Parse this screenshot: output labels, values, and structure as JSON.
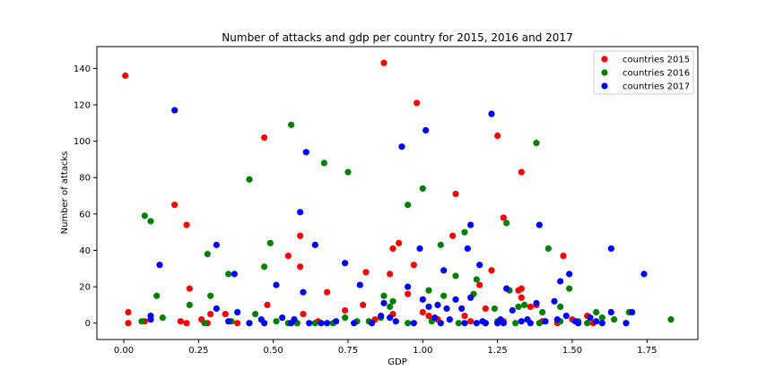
{
  "chart_data": {
    "type": "scatter",
    "title": "Number of attacks and gdp per country for 2015, 2016 and 2017",
    "xlabel": "GDP",
    "ylabel": "Number of attacks",
    "xlim": [
      -0.09,
      1.92
    ],
    "ylim": [
      -9,
      152
    ],
    "xticks": [
      0.0,
      0.25,
      0.5,
      0.75,
      1.0,
      1.25,
      1.5,
      1.75
    ],
    "xtick_labels": [
      "0.00",
      "0.25",
      "0.50",
      "0.75",
      "1.00",
      "1.25",
      "1.50",
      "1.75"
    ],
    "yticks": [
      0,
      20,
      40,
      60,
      80,
      100,
      120,
      140
    ],
    "ytick_labels": [
      "0",
      "20",
      "40",
      "60",
      "80",
      "100",
      "120",
      "140"
    ],
    "grid": false,
    "legend_position": "top-right",
    "series": [
      {
        "name": "countries 2015",
        "color": "#ff0000",
        "points": [
          [
            0.005,
            136
          ],
          [
            0.015,
            6
          ],
          [
            0.015,
            0
          ],
          [
            0.17,
            65
          ],
          [
            0.21,
            54
          ],
          [
            0.22,
            19
          ],
          [
            0.19,
            1
          ],
          [
            0.21,
            0
          ],
          [
            0.26,
            2
          ],
          [
            0.29,
            5
          ],
          [
            0.28,
            0
          ],
          [
            0.34,
            5
          ],
          [
            0.47,
            102
          ],
          [
            0.48,
            10
          ],
          [
            0.55,
            37
          ],
          [
            0.59,
            48
          ],
          [
            0.59,
            31
          ],
          [
            0.6,
            5
          ],
          [
            0.68,
            17
          ],
          [
            0.74,
            7
          ],
          [
            0.8,
            10
          ],
          [
            0.81,
            28
          ],
          [
            0.87,
            143
          ],
          [
            0.89,
            27
          ],
          [
            0.9,
            41
          ],
          [
            0.92,
            44
          ],
          [
            0.95,
            16
          ],
          [
            0.97,
            32
          ],
          [
            0.98,
            121
          ],
          [
            1.0,
            6
          ],
          [
            1.02,
            4
          ],
          [
            1.11,
            71
          ],
          [
            1.1,
            48
          ],
          [
            1.14,
            4
          ],
          [
            1.19,
            21
          ],
          [
            1.21,
            8
          ],
          [
            1.23,
            29
          ],
          [
            1.25,
            103
          ],
          [
            1.27,
            58
          ],
          [
            1.33,
            83
          ],
          [
            1.33,
            19
          ],
          [
            1.33,
            14
          ],
          [
            1.32,
            18
          ],
          [
            1.36,
            9
          ],
          [
            1.38,
            10
          ],
          [
            1.4,
            1
          ],
          [
            1.47,
            37
          ],
          [
            1.5,
            2
          ],
          [
            1.55,
            4
          ],
          [
            1.57,
            0
          ],
          [
            0.38,
            0
          ],
          [
            0.65,
            1
          ],
          [
            0.84,
            2
          ],
          [
            0.9,
            5
          ],
          [
            1.05,
            2
          ],
          [
            1.16,
            1
          ],
          [
            1.27,
            1
          ],
          [
            1.45,
            0
          ],
          [
            0.07,
            1
          ]
        ]
      },
      {
        "name": "countries 2016",
        "color": "#008000",
        "points": [
          [
            0.06,
            1
          ],
          [
            0.07,
            59
          ],
          [
            0.09,
            56
          ],
          [
            0.11,
            15
          ],
          [
            0.13,
            3
          ],
          [
            0.22,
            10
          ],
          [
            0.28,
            38
          ],
          [
            0.29,
            15
          ],
          [
            0.35,
            27
          ],
          [
            0.42,
            79
          ],
          [
            0.44,
            5
          ],
          [
            0.47,
            31
          ],
          [
            0.49,
            44
          ],
          [
            0.55,
            0
          ],
          [
            0.56,
            109
          ],
          [
            0.67,
            88
          ],
          [
            0.75,
            83
          ],
          [
            0.74,
            3
          ],
          [
            0.86,
            3
          ],
          [
            0.87,
            15
          ],
          [
            0.89,
            9
          ],
          [
            0.9,
            12
          ],
          [
            0.95,
            65
          ],
          [
            1.0,
            74
          ],
          [
            1.02,
            18
          ],
          [
            1.06,
            43
          ],
          [
            1.07,
            15
          ],
          [
            1.11,
            26
          ],
          [
            1.14,
            50
          ],
          [
            1.17,
            16
          ],
          [
            1.18,
            24
          ],
          [
            1.24,
            8
          ],
          [
            1.28,
            55
          ],
          [
            1.29,
            18
          ],
          [
            1.32,
            9
          ],
          [
            1.34,
            10
          ],
          [
            1.38,
            99
          ],
          [
            1.4,
            6
          ],
          [
            1.42,
            41
          ],
          [
            1.46,
            9
          ],
          [
            1.49,
            19
          ],
          [
            1.58,
            6
          ],
          [
            1.6,
            3
          ],
          [
            1.64,
            2
          ],
          [
            1.83,
            2
          ],
          [
            0.27,
            0
          ],
          [
            0.51,
            1
          ],
          [
            0.64,
            0
          ],
          [
            0.78,
            1
          ],
          [
            0.95,
            0
          ],
          [
            1.03,
            1
          ],
          [
            1.21,
            0
          ],
          [
            1.31,
            0
          ],
          [
            1.46,
            1
          ],
          [
            1.52,
            1
          ],
          [
            0.36,
            1
          ],
          [
            0.58,
            0
          ],
          [
            0.7,
            0
          ],
          [
            0.82,
            1
          ],
          [
            1.12,
            0
          ],
          [
            1.25,
            1
          ],
          [
            1.39,
            0
          ],
          [
            1.55,
            0
          ],
          [
            1.69,
            6
          ]
        ]
      },
      {
        "name": "countries 2017",
        "color": "#0000ff",
        "points": [
          [
            0.09,
            4
          ],
          [
            0.09,
            2
          ],
          [
            0.12,
            32
          ],
          [
            0.17,
            117
          ],
          [
            0.31,
            43
          ],
          [
            0.31,
            8
          ],
          [
            0.37,
            27
          ],
          [
            0.38,
            6
          ],
          [
            0.42,
            0
          ],
          [
            0.47,
            0
          ],
          [
            0.51,
            21
          ],
          [
            0.53,
            3
          ],
          [
            0.57,
            2
          ],
          [
            0.59,
            61
          ],
          [
            0.6,
            17
          ],
          [
            0.61,
            94
          ],
          [
            0.64,
            43
          ],
          [
            0.66,
            0
          ],
          [
            0.74,
            33
          ],
          [
            0.79,
            21
          ],
          [
            0.86,
            4
          ],
          [
            0.87,
            11
          ],
          [
            0.89,
            3
          ],
          [
            0.93,
            97
          ],
          [
            0.95,
            20
          ],
          [
            0.99,
            41
          ],
          [
            1.0,
            13
          ],
          [
            1.01,
            106
          ],
          [
            1.02,
            9
          ],
          [
            1.05,
            10
          ],
          [
            1.07,
            29
          ],
          [
            1.08,
            8
          ],
          [
            1.11,
            13
          ],
          [
            1.13,
            8
          ],
          [
            1.15,
            41
          ],
          [
            1.16,
            54
          ],
          [
            1.16,
            14
          ],
          [
            1.19,
            32
          ],
          [
            1.21,
            0
          ],
          [
            1.23,
            115
          ],
          [
            1.25,
            0
          ],
          [
            1.26,
            2
          ],
          [
            1.28,
            19
          ],
          [
            1.3,
            7
          ],
          [
            1.35,
            2
          ],
          [
            1.38,
            11
          ],
          [
            1.39,
            54
          ],
          [
            1.44,
            12
          ],
          [
            1.46,
            23
          ],
          [
            1.48,
            4
          ],
          [
            1.49,
            27
          ],
          [
            1.52,
            0
          ],
          [
            1.56,
            3
          ],
          [
            1.6,
            0
          ],
          [
            1.63,
            41
          ],
          [
            1.7,
            6
          ],
          [
            1.74,
            27
          ],
          [
            1.63,
            6
          ],
          [
            1.68,
            0
          ],
          [
            0.35,
            1
          ],
          [
            0.56,
            0
          ],
          [
            0.62,
            0
          ],
          [
            0.71,
            1
          ],
          [
            0.77,
            0
          ],
          [
            0.83,
            0
          ],
          [
            0.91,
            1
          ],
          [
            0.97,
            0
          ],
          [
            1.04,
            3
          ],
          [
            1.09,
            2
          ],
          [
            1.14,
            0
          ],
          [
            1.2,
            1
          ],
          [
            1.27,
            0
          ],
          [
            1.33,
            1
          ],
          [
            1.41,
            1
          ],
          [
            1.45,
            2
          ],
          [
            1.51,
            1
          ],
          [
            1.58,
            1
          ],
          [
            0.46,
            2
          ],
          [
            0.68,
            0
          ],
          [
            1.06,
            0
          ],
          [
            1.18,
            0
          ],
          [
            1.36,
            0
          ]
        ]
      }
    ]
  }
}
